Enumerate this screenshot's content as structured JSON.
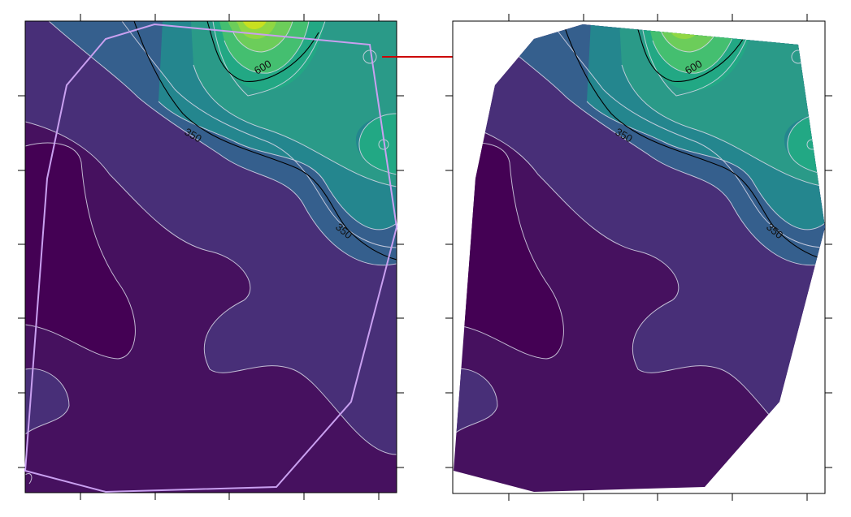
{
  "contour_labels": {
    "left": [
      "600",
      "350",
      "350"
    ],
    "right": [
      "600",
      "350",
      "350"
    ]
  },
  "colors": {
    "band_darkest": "#440154",
    "band_purple": "#46115f",
    "band_indigo": "#482f78",
    "band_blue": "#355f8d",
    "band_teal": "#24868e",
    "band_green": "#22a884",
    "band_lightgreen": "#44bf70",
    "band_lime": "#90d743",
    "band_yellow": "#c8e020",
    "hull_outline": "#c9a0f0",
    "arrow": "#cc0000",
    "contour_major": "#000000",
    "contour_minor": "#d8d8e8"
  }
}
